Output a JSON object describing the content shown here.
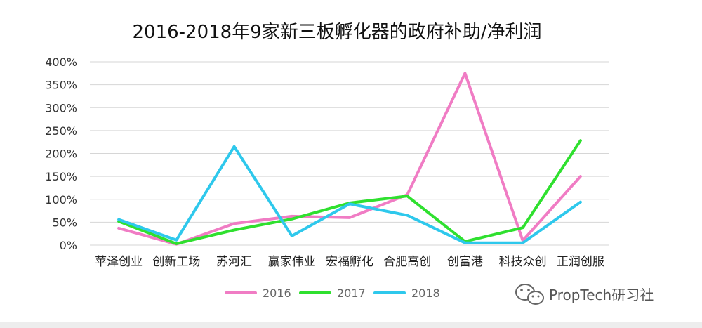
{
  "chart_data": {
    "type": "line",
    "title": "2016-2018年9家新三板孵化器的政府补助/净利润",
    "categories": [
      "苹泽创业",
      "创新工场",
      "苏河汇",
      "赢家伟业",
      "宏福孵化",
      "合肥高创",
      "创富港",
      "科技众创",
      "正润创服"
    ],
    "series": [
      {
        "name": "2016",
        "color": "#f07cc4",
        "values": [
          37,
          2,
          47,
          63,
          60,
          110,
          375,
          10,
          150
        ]
      },
      {
        "name": "2017",
        "color": "#2fe02f",
        "values": [
          52,
          3,
          33,
          57,
          92,
          107,
          8,
          38,
          228
        ]
      },
      {
        "name": "2018",
        "color": "#2ec8ec",
        "values": [
          56,
          11,
          215,
          20,
          90,
          65,
          5,
          5,
          94
        ]
      }
    ],
    "yticks": [
      "0%",
      "50%",
      "100%",
      "150%",
      "200%",
      "250%",
      "300%",
      "350%",
      "400%"
    ],
    "ylim": [
      0,
      400
    ],
    "grid": true,
    "legend": "bottom-center"
  },
  "watermark": {
    "text": "PropTech研习社",
    "icon": "wechat-icon"
  }
}
